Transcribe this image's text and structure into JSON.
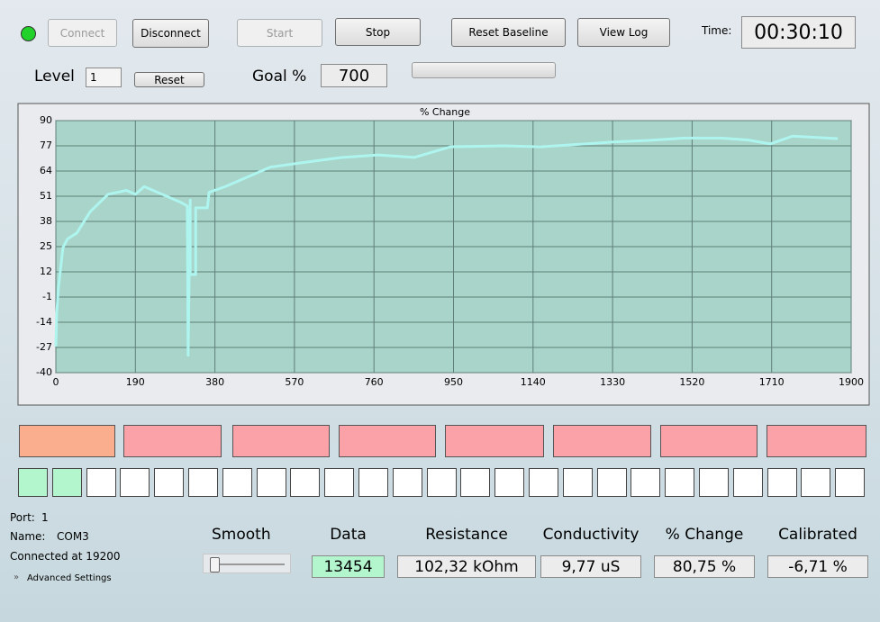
{
  "ui": {
    "connect": "Connect",
    "disconnect": "Disconnect",
    "start": "Start",
    "stop": "Stop",
    "reset_baseline": "Reset Baseline",
    "view_log": "View Log",
    "time_label": "Time:",
    "time": "00:30:10",
    "level_label": "Level",
    "level": 1,
    "reset": "Reset",
    "goal_label": "Goal %",
    "goal": 700
  },
  "status": {
    "port_label": "Port:",
    "port": 1,
    "name_label": "Name:",
    "name": "COM3",
    "connected": "Connected at 19200",
    "advanced": "Advanced Settings"
  },
  "readouts": {
    "smooth_label": "Smooth",
    "items": [
      {
        "label": "Data",
        "value": 13454
      },
      {
        "label": "Resistance",
        "value": "102,32 kOhm"
      },
      {
        "label": "Conductivity",
        "value": "9,77 uS"
      },
      {
        "label": "% Change",
        "value": "80,75 %"
      },
      {
        "label": "Calibrated",
        "value": "-6,71 %"
      }
    ]
  },
  "chart_data": {
    "type": "line",
    "title": "% Change",
    "x": [
      0,
      2,
      6,
      11,
      17,
      28,
      50,
      82,
      125,
      168,
      190,
      211,
      254,
      297,
      314,
      316,
      321,
      321,
      334,
      334,
      362,
      366,
      405,
      448,
      512,
      598,
      684,
      770,
      856,
      943,
      1072,
      1158,
      1265,
      1330,
      1416,
      1502,
      1588,
      1653,
      1707,
      1760,
      1868
    ],
    "series": [
      {
        "color": "#aef5f0",
        "values": [
          -26.5,
          -10,
          3.6,
          13,
          24.5,
          29,
          32,
          43,
          52,
          54,
          52,
          56,
          52,
          48,
          46,
          -31,
          49,
          10.6,
          10.6,
          45,
          45,
          53,
          56,
          60,
          66,
          68.6,
          71,
          72.3,
          71,
          76.5,
          77,
          76.5,
          78,
          79,
          79.8,
          81,
          81,
          80,
          78,
          82,
          80.7
        ]
      }
    ],
    "xlim": [
      0,
      1900
    ],
    "ylim": [
      -40,
      90
    ],
    "xticks": [
      0,
      190,
      380,
      570,
      760,
      950,
      1140,
      1330,
      1520,
      1710,
      1900
    ],
    "yticks": [
      90,
      77,
      64,
      51,
      38,
      25,
      12,
      -1,
      -14,
      -27,
      -40
    ],
    "grid": true,
    "background": "#a9d4c9",
    "grid_color": "#5f7f78"
  }
}
